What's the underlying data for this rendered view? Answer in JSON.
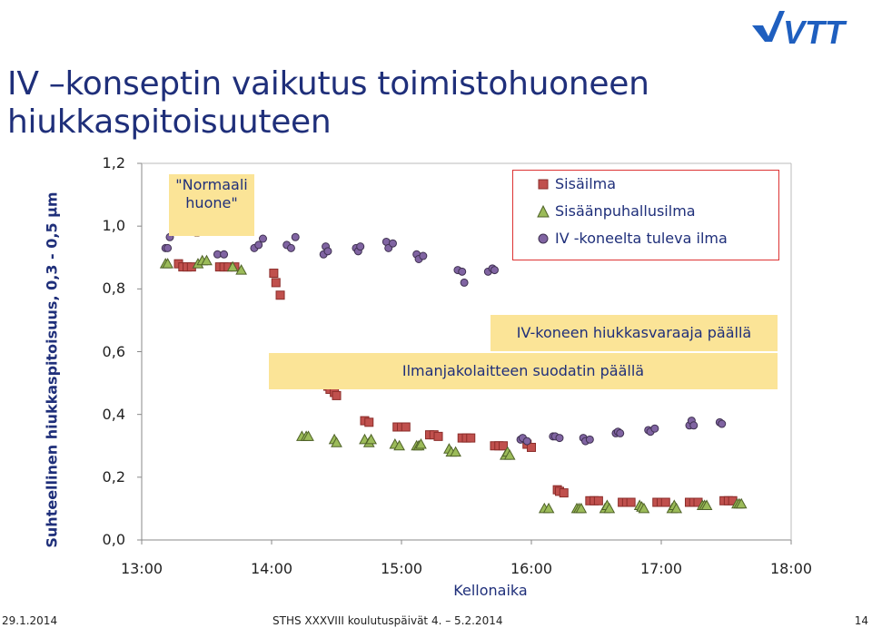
{
  "header": {
    "title_line1": "IV –konseptin vaikutus toimistohuoneen",
    "title_line2": "hiukkaspitoisuuteen",
    "logo_text": "VTT"
  },
  "footer": {
    "date": "29.1.2014",
    "event": "STHS XXXVIII koulutuspäivät 4. – 5.2.2014",
    "page": "14"
  },
  "colors": {
    "title": "#1f2f7a",
    "sisailma": "#c0504d",
    "sisaanpuhallusilma": "#9bbb59",
    "iv": "#8064a2",
    "highlight": "#fbe497",
    "normal_marker": "#f79646"
  },
  "chart_data": {
    "type": "scatter",
    "title": "",
    "xlabel": "Kellonaika",
    "ylabel": "Suhteellinen hiukkaspitoisuus, 0,3 - 0,5 µm",
    "xlim": [
      "13:00",
      "18:00"
    ],
    "ylim": [
      0.0,
      1.2
    ],
    "x_ticks": [
      "13:00",
      "14:00",
      "15:00",
      "16:00",
      "17:00",
      "18:00"
    ],
    "y_ticks": [
      "0,0",
      "0,2",
      "0,4",
      "0,6",
      "0,8",
      "1,0",
      "1,2"
    ],
    "grid": false,
    "legend_position": "top-right",
    "annotations": [
      {
        "text_line1": "\"Normaali",
        "text_line2": "huone\""
      },
      {
        "text": "IV-koneen hiukkasvaraaja päällä"
      },
      {
        "text": "Ilmanjakolaitteen suodatin päällä"
      }
    ],
    "series": [
      {
        "name": "Sisäilma",
        "marker": "square",
        "points": [
          [
            "13:17",
            0.88
          ],
          [
            "13:19",
            0.87
          ],
          [
            "13:21",
            0.87
          ],
          [
            "13:23",
            0.87
          ],
          [
            "13:36",
            0.87
          ],
          [
            "13:38",
            0.87
          ],
          [
            "13:40",
            0.87
          ],
          [
            "13:43",
            0.87
          ],
          [
            "14:01",
            0.85
          ],
          [
            "14:02",
            0.82
          ],
          [
            "14:04",
            0.78
          ],
          [
            "14:25",
            0.5
          ],
          [
            "14:26",
            0.49
          ],
          [
            "14:27",
            0.48
          ],
          [
            "14:29",
            0.47
          ],
          [
            "14:30",
            0.46
          ],
          [
            "14:43",
            0.38
          ],
          [
            "14:45",
            0.375
          ],
          [
            "14:58",
            0.36
          ],
          [
            "15:00",
            0.36
          ],
          [
            "15:02",
            0.36
          ],
          [
            "15:13",
            0.335
          ],
          [
            "15:15",
            0.335
          ],
          [
            "15:17",
            0.33
          ],
          [
            "15:28",
            0.325
          ],
          [
            "15:30",
            0.325
          ],
          [
            "15:32",
            0.325
          ],
          [
            "15:43",
            0.3
          ],
          [
            "15:45",
            0.3
          ],
          [
            "15:47",
            0.3
          ],
          [
            "15:58",
            0.305
          ],
          [
            "16:00",
            0.295
          ],
          [
            "16:12",
            0.16
          ],
          [
            "16:13",
            0.155
          ],
          [
            "16:15",
            0.15
          ],
          [
            "16:27",
            0.125
          ],
          [
            "16:29",
            0.125
          ],
          [
            "16:31",
            0.125
          ],
          [
            "16:42",
            0.12
          ],
          [
            "16:44",
            0.12
          ],
          [
            "16:46",
            0.12
          ],
          [
            "16:58",
            0.12
          ],
          [
            "17:00",
            0.12
          ],
          [
            "17:02",
            0.12
          ],
          [
            "17:13",
            0.12
          ],
          [
            "17:15",
            0.12
          ],
          [
            "17:17",
            0.12
          ],
          [
            "17:29",
            0.125
          ],
          [
            "17:31",
            0.125
          ],
          [
            "17:33",
            0.125
          ]
        ]
      },
      {
        "name": "Sisäänpuhallusilma",
        "marker": "triangle",
        "points": [
          [
            "13:11",
            0.88
          ],
          [
            "13:12",
            0.88
          ],
          [
            "13:26",
            0.88
          ],
          [
            "13:28",
            0.89
          ],
          [
            "13:30",
            0.89
          ],
          [
            "13:42",
            0.87
          ],
          [
            "13:46",
            0.86
          ],
          [
            "14:14",
            0.33
          ],
          [
            "14:16",
            0.33
          ],
          [
            "14:17",
            0.33
          ],
          [
            "14:29",
            0.32
          ],
          [
            "14:30",
            0.31
          ],
          [
            "14:43",
            0.32
          ],
          [
            "14:45",
            0.31
          ],
          [
            "14:46",
            0.32
          ],
          [
            "14:57",
            0.305
          ],
          [
            "14:59",
            0.3
          ],
          [
            "15:07",
            0.3
          ],
          [
            "15:08",
            0.3
          ],
          [
            "15:09",
            0.305
          ],
          [
            "15:22",
            0.29
          ],
          [
            "15:23",
            0.28
          ],
          [
            "15:25",
            0.28
          ],
          [
            "15:48",
            0.27
          ],
          [
            "15:49",
            0.28
          ],
          [
            "15:50",
            0.27
          ],
          [
            "16:06",
            0.1
          ],
          [
            "16:08",
            0.1
          ],
          [
            "16:21",
            0.1
          ],
          [
            "16:22",
            0.1
          ],
          [
            "16:23",
            0.1
          ],
          [
            "16:34",
            0.1
          ],
          [
            "16:35",
            0.11
          ],
          [
            "16:36",
            0.1
          ],
          [
            "16:50",
            0.11
          ],
          [
            "16:51",
            0.105
          ],
          [
            "16:52",
            0.1
          ],
          [
            "17:05",
            0.1
          ],
          [
            "17:06",
            0.11
          ],
          [
            "17:07",
            0.1
          ],
          [
            "17:19",
            0.11
          ],
          [
            "17:20",
            0.11
          ],
          [
            "17:21",
            0.11
          ],
          [
            "17:35",
            0.115
          ],
          [
            "17:36",
            0.115
          ],
          [
            "17:37",
            0.115
          ]
        ]
      },
      {
        "name": "IV -koneelta tuleva ilma",
        "marker": "circle",
        "points": [
          [
            "13:11",
            0.93
          ],
          [
            "13:12",
            0.93
          ],
          [
            "13:13",
            0.965
          ],
          [
            "13:35",
            0.91
          ],
          [
            "13:38",
            0.91
          ],
          [
            "13:52",
            0.93
          ],
          [
            "13:54",
            0.94
          ],
          [
            "13:56",
            0.96
          ],
          [
            "14:07",
            0.94
          ],
          [
            "14:09",
            0.93
          ],
          [
            "14:11",
            0.965
          ],
          [
            "14:24",
            0.91
          ],
          [
            "14:25",
            0.935
          ],
          [
            "14:26",
            0.92
          ],
          [
            "14:39",
            0.93
          ],
          [
            "14:40",
            0.92
          ],
          [
            "14:41",
            0.935
          ],
          [
            "14:53",
            0.95
          ],
          [
            "14:54",
            0.93
          ],
          [
            "14:56",
            0.945
          ],
          [
            "15:07",
            0.91
          ],
          [
            "15:08",
            0.895
          ],
          [
            "15:10",
            0.905
          ],
          [
            "15:26",
            0.86
          ],
          [
            "15:28",
            0.855
          ],
          [
            "15:29",
            0.82
          ],
          [
            "15:40",
            0.855
          ],
          [
            "15:42",
            0.865
          ],
          [
            "15:43",
            0.86
          ],
          [
            "15:55",
            0.32
          ],
          [
            "15:56",
            0.325
          ],
          [
            "15:58",
            0.315
          ],
          [
            "16:10",
            0.33
          ],
          [
            "16:11",
            0.33
          ],
          [
            "16:13",
            0.325
          ],
          [
            "16:24",
            0.325
          ],
          [
            "16:25",
            0.315
          ],
          [
            "16:27",
            0.32
          ],
          [
            "16:39",
            0.34
          ],
          [
            "16:40",
            0.345
          ],
          [
            "16:41",
            0.34
          ],
          [
            "16:54",
            0.35
          ],
          [
            "16:55",
            0.345
          ],
          [
            "16:57",
            0.355
          ],
          [
            "17:13",
            0.365
          ],
          [
            "17:14",
            0.38
          ],
          [
            "17:15",
            0.365
          ],
          [
            "17:27",
            0.375
          ],
          [
            "17:28",
            0.37
          ]
        ]
      }
    ],
    "normal_room_markers": [
      [
        "13:25",
        0.98
      ],
      [
        "13:26",
        0.98
      ]
    ]
  }
}
